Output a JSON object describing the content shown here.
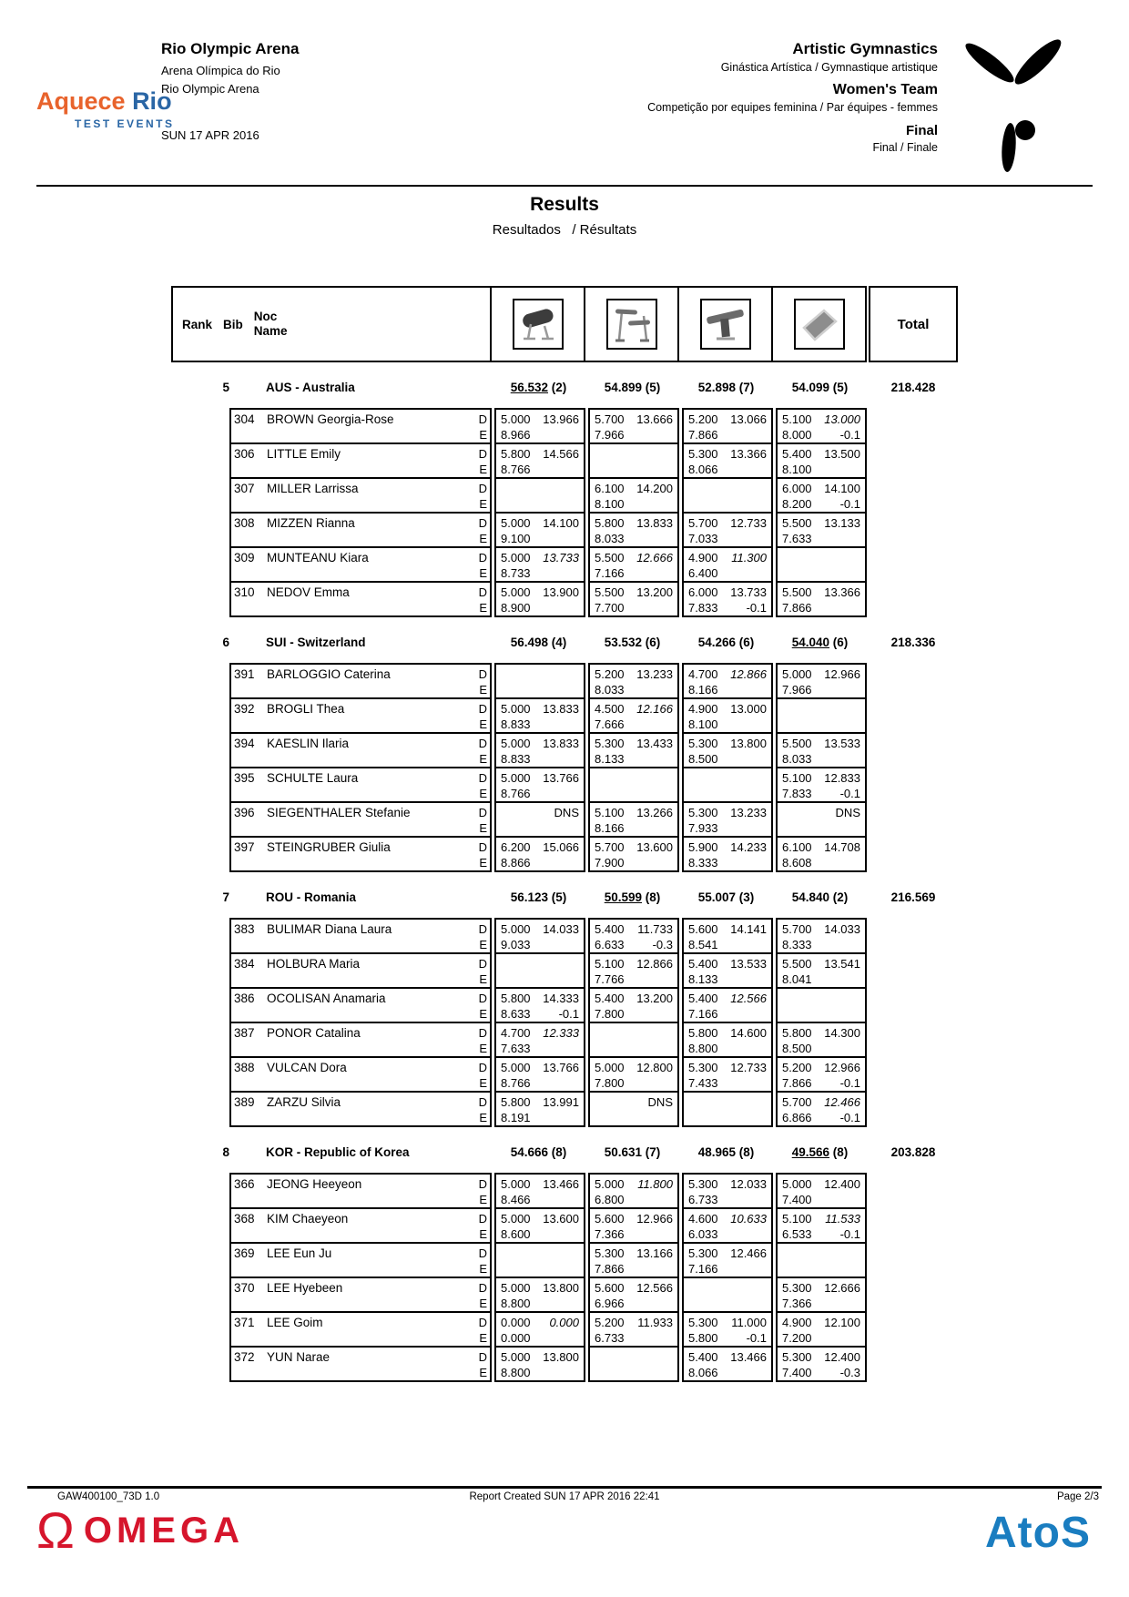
{
  "colors": {
    "accent_orange": "#E8632C",
    "accent_blue": "#2A66A5",
    "omega_red": "#D6152C",
    "atos_blue": "#1A7DC0"
  },
  "header": {
    "logo": {
      "word1": "Aquece",
      "word2": "Rio",
      "sub": "TEST EVENTS"
    },
    "venue": {
      "title": "Rio Olympic Arena",
      "sub1": "Arena Olímpica do Rio",
      "sub2": "Rio Olympic Arena",
      "date": "SUN 17 APR 2016"
    },
    "event": {
      "title": "Artistic Gymnastics",
      "subtitle": "Ginástica Artística / Gymnastique artistique",
      "category": "Women's Team",
      "category_sub": "Competição por equipes feminina / Par équipes - femmes",
      "phase": "Final",
      "phase_sub": "Final / Finale"
    }
  },
  "title": {
    "main": "Results",
    "sub": "Resultados   / Résultats"
  },
  "table": {
    "rank_label": "Rank",
    "bib_label": "Bib",
    "noc_label": "Noc",
    "name_label": "Name",
    "total_label": "Total",
    "d_label": "D",
    "e_label": "E",
    "dns_label": "DNS",
    "apparatus": [
      "vault",
      "uneven-bars",
      "balance-beam",
      "floor"
    ],
    "teams": [
      {
        "rank": "5",
        "name": "AUS - Australia",
        "total": "218.428",
        "scores": [
          {
            "value": "56.532",
            "rank": "(2)",
            "u": true
          },
          {
            "value": "54.899",
            "rank": "(5)"
          },
          {
            "value": "52.898",
            "rank": "(7)"
          },
          {
            "value": "54.099",
            "rank": "(5)"
          }
        ],
        "gymnasts": [
          {
            "bib": "304",
            "name": "BROWN Georgia-Rose",
            "apparatus": [
              {
                "d": "5.000",
                "s": "13.966",
                "e": "8.966"
              },
              {
                "d": "5.700",
                "s": "13.666",
                "e": "7.966"
              },
              {
                "d": "5.200",
                "s": "13.066",
                "e": "7.866"
              },
              {
                "d": "5.100",
                "s": "13.000",
                "si": true,
                "e": "8.000",
                "p": "-0.1"
              }
            ]
          },
          {
            "bib": "306",
            "name": "LITTLE Emily",
            "apparatus": [
              {
                "d": "5.800",
                "s": "14.566",
                "e": "8.766"
              },
              null,
              {
                "d": "5.300",
                "s": "13.366",
                "e": "8.066"
              },
              {
                "d": "5.400",
                "s": "13.500",
                "e": "8.100"
              }
            ]
          },
          {
            "bib": "307",
            "name": "MILLER Larrissa",
            "apparatus": [
              null,
              {
                "d": "6.100",
                "s": "14.200",
                "e": "8.100"
              },
              null,
              {
                "d": "6.000",
                "s": "14.100",
                "e": "8.200",
                "p": "-0.1"
              }
            ]
          },
          {
            "bib": "308",
            "name": "MIZZEN Rianna",
            "apparatus": [
              {
                "d": "5.000",
                "s": "14.100",
                "e": "9.100"
              },
              {
                "d": "5.800",
                "s": "13.833",
                "e": "8.033"
              },
              {
                "d": "5.700",
                "s": "12.733",
                "e": "7.033"
              },
              {
                "d": "5.500",
                "s": "13.133",
                "e": "7.633"
              }
            ]
          },
          {
            "bib": "309",
            "name": "MUNTEANU Kiara",
            "apparatus": [
              {
                "d": "5.000",
                "s": "13.733",
                "si": true,
                "e": "8.733"
              },
              {
                "d": "5.500",
                "s": "12.666",
                "si": true,
                "e": "7.166"
              },
              {
                "d": "4.900",
                "s": "11.300",
                "si": true,
                "e": "6.400"
              },
              null
            ]
          },
          {
            "bib": "310",
            "name": "NEDOV Emma",
            "apparatus": [
              {
                "d": "5.000",
                "s": "13.900",
                "e": "8.900"
              },
              {
                "d": "5.500",
                "s": "13.200",
                "e": "7.700"
              },
              {
                "d": "6.000",
                "s": "13.733",
                "e": "7.833",
                "p": "-0.1"
              },
              {
                "d": "5.500",
                "s": "13.366",
                "e": "7.866"
              }
            ]
          }
        ]
      },
      {
        "rank": "6",
        "name": "SUI - Switzerland",
        "total": "218.336",
        "scores": [
          {
            "value": "56.498",
            "rank": "(4)"
          },
          {
            "value": "53.532",
            "rank": "(6)"
          },
          {
            "value": "54.266",
            "rank": "(6)"
          },
          {
            "value": "54.040",
            "rank": "(6)",
            "u": true
          }
        ],
        "gymnasts": [
          {
            "bib": "391",
            "name": "BARLOGGIO Caterina",
            "apparatus": [
              null,
              {
                "d": "5.200",
                "s": "13.233",
                "e": "8.033"
              },
              {
                "d": "4.700",
                "s": "12.866",
                "si": true,
                "e": "8.166"
              },
              {
                "d": "5.000",
                "s": "12.966",
                "e": "7.966"
              }
            ]
          },
          {
            "bib": "392",
            "name": "BROGLI Thea",
            "apparatus": [
              {
                "d": "5.000",
                "s": "13.833",
                "e": "8.833"
              },
              {
                "d": "4.500",
                "s": "12.166",
                "si": true,
                "e": "7.666"
              },
              {
                "d": "4.900",
                "s": "13.000",
                "e": "8.100"
              },
              null
            ]
          },
          {
            "bib": "394",
            "name": "KAESLIN Ilaria",
            "apparatus": [
              {
                "d": "5.000",
                "s": "13.833",
                "e": "8.833"
              },
              {
                "d": "5.300",
                "s": "13.433",
                "e": "8.133"
              },
              {
                "d": "5.300",
                "s": "13.800",
                "e": "8.500"
              },
              {
                "d": "5.500",
                "s": "13.533",
                "e": "8.033"
              }
            ]
          },
          {
            "bib": "395",
            "name": "SCHULTE Laura",
            "apparatus": [
              {
                "d": "5.000",
                "s": "13.766",
                "e": "8.766"
              },
              null,
              null,
              {
                "d": "5.100",
                "s": "12.833",
                "e": "7.833",
                "p": "-0.1"
              }
            ]
          },
          {
            "bib": "396",
            "name": "SIEGENTHALER Stefanie",
            "apparatus": [
              {
                "dns": true
              },
              {
                "d": "5.100",
                "s": "13.266",
                "e": "8.166"
              },
              {
                "d": "5.300",
                "s": "13.233",
                "e": "7.933"
              },
              {
                "dns": true
              }
            ]
          },
          {
            "bib": "397",
            "name": "STEINGRUBER Giulia",
            "apparatus": [
              {
                "d": "6.200",
                "s": "15.066",
                "e": "8.866"
              },
              {
                "d": "5.700",
                "s": "13.600",
                "e": "7.900"
              },
              {
                "d": "5.900",
                "s": "14.233",
                "e": "8.333"
              },
              {
                "d": "6.100",
                "s": "14.708",
                "e": "8.608"
              }
            ]
          }
        ]
      },
      {
        "rank": "7",
        "name": "ROU - Romania",
        "total": "216.569",
        "scores": [
          {
            "value": "56.123",
            "rank": "(5)"
          },
          {
            "value": "50.599",
            "rank": "(8)",
            "u": true
          },
          {
            "value": "55.007",
            "rank": "(3)"
          },
          {
            "value": "54.840",
            "rank": "(2)"
          }
        ],
        "gymnasts": [
          {
            "bib": "383",
            "name": "BULIMAR Diana Laura",
            "apparatus": [
              {
                "d": "5.000",
                "s": "14.033",
                "e": "9.033"
              },
              {
                "d": "5.400",
                "s": "11.733",
                "e": "6.633",
                "p": "-0.3"
              },
              {
                "d": "5.600",
                "s": "14.141",
                "e": "8.541"
              },
              {
                "d": "5.700",
                "s": "14.033",
                "e": "8.333"
              }
            ]
          },
          {
            "bib": "384",
            "name": "HOLBURA Maria",
            "apparatus": [
              null,
              {
                "d": "5.100",
                "s": "12.866",
                "e": "7.766"
              },
              {
                "d": "5.400",
                "s": "13.533",
                "e": "8.133"
              },
              {
                "d": "5.500",
                "s": "13.541",
                "e": "8.041"
              }
            ]
          },
          {
            "bib": "386",
            "name": "OCOLISAN Anamaria",
            "apparatus": [
              {
                "d": "5.800",
                "s": "14.333",
                "e": "8.633",
                "p": "-0.1"
              },
              {
                "d": "5.400",
                "s": "13.200",
                "e": "7.800"
              },
              {
                "d": "5.400",
                "s": "12.566",
                "si": true,
                "e": "7.166"
              },
              null
            ]
          },
          {
            "bib": "387",
            "name": "PONOR Catalina",
            "apparatus": [
              {
                "d": "4.700",
                "s": "12.333",
                "si": true,
                "e": "7.633"
              },
              null,
              {
                "d": "5.800",
                "s": "14.600",
                "e": "8.800"
              },
              {
                "d": "5.800",
                "s": "14.300",
                "e": "8.500"
              }
            ]
          },
          {
            "bib": "388",
            "name": "VULCAN Dora",
            "apparatus": [
              {
                "d": "5.000",
                "s": "13.766",
                "e": "8.766"
              },
              {
                "d": "5.000",
                "s": "12.800",
                "e": "7.800"
              },
              {
                "d": "5.300",
                "s": "12.733",
                "e": "7.433"
              },
              {
                "d": "5.200",
                "s": "12.966",
                "e": "7.866",
                "p": "-0.1"
              }
            ]
          },
          {
            "bib": "389",
            "name": "ZARZU Silvia",
            "apparatus": [
              {
                "d": "5.800",
                "s": "13.991",
                "e": "8.191"
              },
              {
                "dns": true
              },
              null,
              {
                "d": "5.700",
                "s": "12.466",
                "si": true,
                "e": "6.866",
                "p": "-0.1"
              }
            ]
          }
        ]
      },
      {
        "rank": "8",
        "name": "KOR - Republic of Korea",
        "total": "203.828",
        "scores": [
          {
            "value": "54.666",
            "rank": "(8)"
          },
          {
            "value": "50.631",
            "rank": "(7)"
          },
          {
            "value": "48.965",
            "rank": "(8)"
          },
          {
            "value": "49.566",
            "rank": "(8)",
            "u": true
          }
        ],
        "gymnasts": [
          {
            "bib": "366",
            "name": "JEONG Heeyeon",
            "apparatus": [
              {
                "d": "5.000",
                "s": "13.466",
                "e": "8.466"
              },
              {
                "d": "5.000",
                "s": "11.800",
                "si": true,
                "e": "6.800"
              },
              {
                "d": "5.300",
                "s": "12.033",
                "e": "6.733"
              },
              {
                "d": "5.000",
                "s": "12.400",
                "e": "7.400"
              }
            ]
          },
          {
            "bib": "368",
            "name": "KIM Chaeyeon",
            "apparatus": [
              {
                "d": "5.000",
                "s": "13.600",
                "e": "8.600"
              },
              {
                "d": "5.600",
                "s": "12.966",
                "e": "7.366"
              },
              {
                "d": "4.600",
                "s": "10.633",
                "si": true,
                "e": "6.033"
              },
              {
                "d": "5.100",
                "s": "11.533",
                "si": true,
                "e": "6.533",
                "p": "-0.1"
              }
            ]
          },
          {
            "bib": "369",
            "name": "LEE Eun Ju",
            "apparatus": [
              null,
              {
                "d": "5.300",
                "s": "13.166",
                "e": "7.866"
              },
              {
                "d": "5.300",
                "s": "12.466",
                "e": "7.166"
              },
              null
            ]
          },
          {
            "bib": "370",
            "name": "LEE Hyebeen",
            "apparatus": [
              {
                "d": "5.000",
                "s": "13.800",
                "e": "8.800"
              },
              {
                "d": "5.600",
                "s": "12.566",
                "e": "6.966"
              },
              null,
              {
                "d": "5.300",
                "s": "12.666",
                "e": "7.366"
              }
            ]
          },
          {
            "bib": "371",
            "name": "LEE Goim",
            "apparatus": [
              {
                "d": "0.000",
                "s": "0.000",
                "si": true,
                "e": "0.000"
              },
              {
                "d": "5.200",
                "s": "11.933",
                "e": "6.733"
              },
              {
                "d": "5.300",
                "s": "11.000",
                "e": "5.800",
                "p": "-0.1"
              },
              {
                "d": "4.900",
                "s": "12.100",
                "e": "7.200"
              }
            ]
          },
          {
            "bib": "372",
            "name": "YUN Narae",
            "apparatus": [
              {
                "d": "5.000",
                "s": "13.800",
                "e": "8.800"
              },
              null,
              {
                "d": "5.400",
                "s": "13.466",
                "e": "8.066"
              },
              {
                "d": "5.300",
                "s": "12.400",
                "e": "7.400",
                "p": "-0.3"
              }
            ]
          }
        ]
      }
    ]
  },
  "footer": {
    "left": "GAW400100_73D 1.0",
    "center": "Report Created SUN 17 APR 2016 22:41",
    "right": "Page 2/3",
    "omega_symbol": "Ω",
    "omega_text": "OMEGA",
    "atos_text": "AtoS"
  }
}
